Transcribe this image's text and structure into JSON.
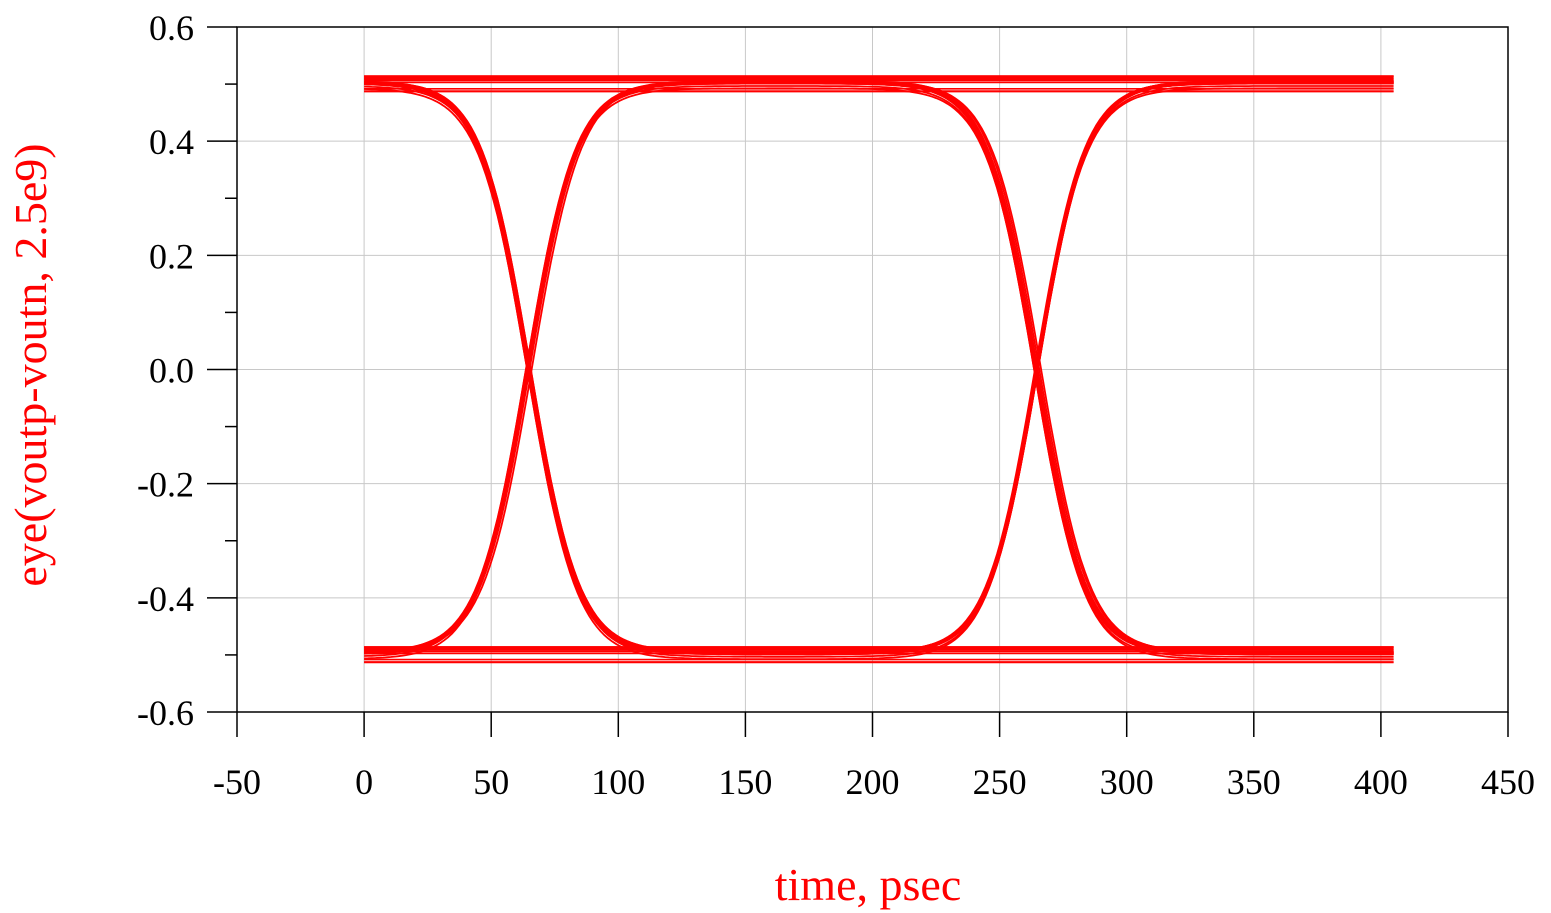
{
  "chart_data": {
    "type": "line",
    "title": "",
    "xlabel": "time, psec",
    "ylabel": "eye(voutp-voutn, 2.5e9)",
    "xlim": [
      -50,
      450
    ],
    "ylim": [
      -0.6,
      0.6
    ],
    "x_ticks": [
      "-50",
      "0",
      "50",
      "100",
      "150",
      "200",
      "250",
      "300",
      "350",
      "400",
      "450"
    ],
    "y_ticks": [
      "0.6",
      "0.4",
      "0.2",
      "0.0",
      "-0.2",
      "-0.4",
      "-0.6"
    ],
    "grid": true,
    "legend": "none",
    "colors": {
      "trace": "#ff0000",
      "label": "#ff0000",
      "grid": "#c8c8c8",
      "axis": "#000000"
    },
    "eye": {
      "bit_period_ps": 400,
      "x_range": [
        0,
        405
      ],
      "high_level": 0.5,
      "low_level": -0.5,
      "crossings_ps": [
        65,
        265
      ],
      "crossing_level": 0.0,
      "trace_count": 12
    }
  }
}
